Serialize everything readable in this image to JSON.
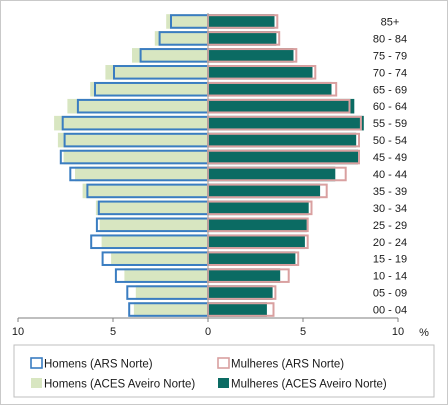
{
  "chart_data": {
    "type": "bar",
    "subtype": "population-pyramid",
    "title": "",
    "xlabel": "%",
    "ylabel": "",
    "xlim": [
      -10,
      10
    ],
    "x_tick_labels": [
      "10",
      "5",
      "0",
      "5",
      "10"
    ],
    "x_unit_label": "%",
    "categories": [
      "00 - 04",
      "05 - 09",
      "10 - 14",
      "15 - 19",
      "20 - 24",
      "25 - 29",
      "30 - 34",
      "35 - 39",
      "40 - 44",
      "45 - 49",
      "50 - 54",
      "55 - 59",
      "60 - 64",
      "65 - 69",
      "70 - 74",
      "75 - 79",
      "80 - 84",
      "85+"
    ],
    "series": [
      {
        "name": "Homens (ARS Norte)",
        "side": "left",
        "style": "outline",
        "color": "#3a7dc1",
        "values": [
          4.2,
          4.3,
          4.9,
          5.6,
          6.2,
          5.9,
          5.8,
          6.4,
          7.3,
          7.8,
          7.6,
          7.7,
          6.9,
          6.0,
          5.0,
          3.6,
          2.6,
          2.0
        ]
      },
      {
        "name": "Mulheres (ARS Norte)",
        "side": "right",
        "style": "outline",
        "color": "#d9a0a0",
        "values": [
          3.5,
          3.6,
          4.3,
          4.8,
          5.3,
          5.3,
          5.5,
          6.3,
          7.3,
          8.0,
          8.0,
          8.1,
          7.5,
          6.8,
          5.7,
          4.7,
          3.8,
          3.7
        ]
      },
      {
        "name": "Homens (ACES Aveiro Norte)",
        "side": "left",
        "style": "fill",
        "color": "#d8e6c1",
        "values": [
          3.9,
          3.8,
          4.4,
          5.1,
          5.6,
          5.7,
          5.9,
          6.6,
          7.0,
          7.6,
          7.9,
          8.1,
          7.4,
          6.2,
          5.4,
          4.0,
          2.8,
          2.2
        ]
      },
      {
        "name": "Mulheres (ACES Aveiro Norte)",
        "side": "right",
        "style": "fill",
        "color": "#0b6b63",
        "values": [
          3.1,
          3.4,
          3.8,
          4.6,
          5.1,
          5.2,
          5.3,
          5.9,
          6.7,
          7.9,
          7.8,
          8.2,
          7.7,
          6.5,
          5.5,
          4.5,
          3.6,
          3.5
        ]
      }
    ],
    "grid": false,
    "legend_position": "bottom"
  },
  "legend": {
    "item1": "Homens (ARS Norte)",
    "item2": "Mulheres (ARS Norte)",
    "item3": "Homens (ACES Aveiro Norte)",
    "item4": "Mulheres (ACES Aveiro Norte)"
  }
}
